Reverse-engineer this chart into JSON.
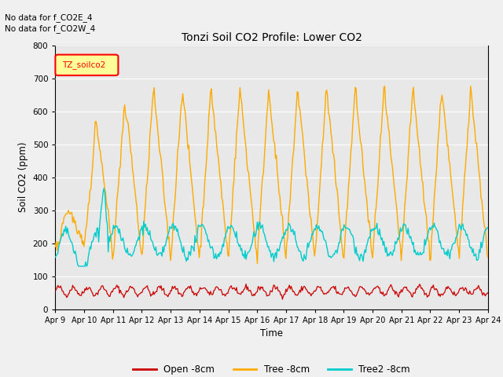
{
  "title": "Tonzi Soil CO2 Profile: Lower CO2",
  "xlabel": "Time",
  "ylabel": "Soil CO2 (ppm)",
  "ylim": [
    0,
    800
  ],
  "yticks": [
    0,
    100,
    200,
    300,
    400,
    500,
    600,
    700,
    800
  ],
  "annotations": [
    "No data for f_CO2E_4",
    "No data for f_CO2W_4"
  ],
  "legend_label": "TZ_soilco2",
  "legend_labels": [
    "Open -8cm",
    "Tree -8cm",
    "Tree2 -8cm"
  ],
  "line_colors": [
    "#cc0000",
    "#ffaa00",
    "#00cccc"
  ],
  "fig_bg_color": "#f0f0f0",
  "plot_bg": "#e8e8e8",
  "n_points": 500,
  "x_start": 9,
  "x_end": 24,
  "xtick_positions": [
    9,
    10,
    11,
    12,
    13,
    14,
    15,
    16,
    17,
    18,
    19,
    20,
    21,
    22,
    23,
    24
  ],
  "xtick_labels": [
    "Apr 9",
    "Apr 10",
    "Apr 11",
    "Apr 12",
    "Apr 13",
    "Apr 14",
    "Apr 15",
    "Apr 16",
    "Apr 17",
    "Apr 18",
    "Apr 19",
    "Apr 20",
    "Apr 21",
    "Apr 22",
    "Apr 23",
    "Apr 24"
  ]
}
